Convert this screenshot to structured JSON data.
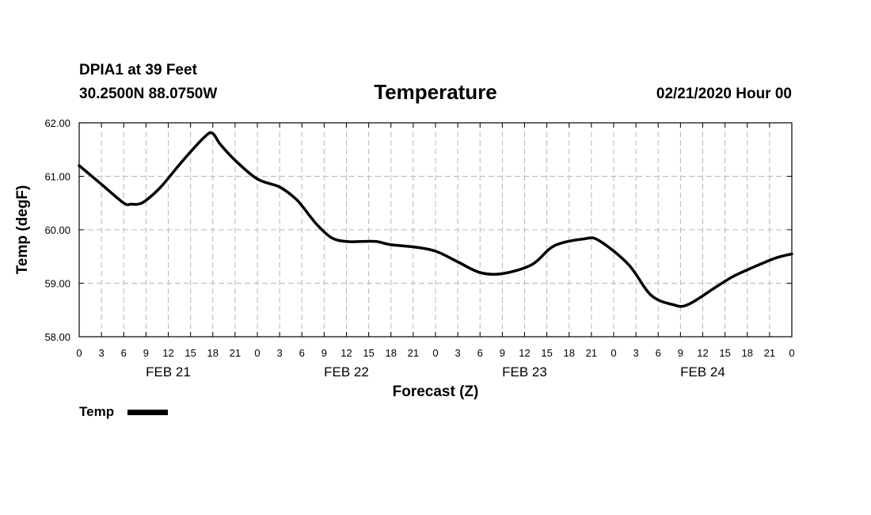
{
  "header": {
    "station": "DPIA1 at 39 Feet",
    "coords": "30.2500N 88.0750W",
    "title": "Temperature",
    "run": "02/21/2020 Hour 00"
  },
  "chart_data": {
    "type": "line",
    "title": "Temperature",
    "xlabel": "Forecast (Z)",
    "ylabel": "Temp (degF)",
    "ylim": [
      58,
      62
    ],
    "xlim": [
      0,
      96
    ],
    "grid": true,
    "y_ticks": [
      "58.00",
      "59.00",
      "60.00",
      "61.00",
      "62.00"
    ],
    "x_tick_labels": [
      "0",
      "3",
      "6",
      "9",
      "12",
      "15",
      "18",
      "21",
      "0",
      "3",
      "6",
      "9",
      "12",
      "15",
      "18",
      "21",
      "0",
      "3",
      "6",
      "9",
      "12",
      "15",
      "18",
      "21",
      "0",
      "3",
      "6",
      "9",
      "12",
      "15",
      "18",
      "21",
      "0"
    ],
    "day_labels": [
      {
        "label": "FEB 21",
        "hour": 12
      },
      {
        "label": "FEB 22",
        "hour": 36
      },
      {
        "label": "FEB 23",
        "hour": 60
      },
      {
        "label": "FEB 24",
        "hour": 84
      }
    ],
    "legend": {
      "label": "Temp",
      "position": "bottom-left"
    },
    "series": [
      {
        "name": "Temp",
        "color": "#000000",
        "x": [
          0,
          3,
          6,
          7,
          8,
          9,
          11,
          14,
          17,
          18,
          19,
          21,
          24,
          27,
          29,
          30,
          32,
          34,
          36,
          38,
          40,
          42,
          45,
          48,
          51,
          54,
          57,
          61,
          64,
          68,
          70,
          74,
          77,
          80,
          82,
          86,
          88,
          90,
          92,
          94,
          96
        ],
        "values": [
          61.2,
          60.85,
          60.5,
          60.48,
          60.48,
          60.55,
          60.8,
          61.3,
          61.75,
          61.8,
          61.6,
          61.3,
          60.95,
          60.8,
          60.6,
          60.45,
          60.1,
          59.85,
          59.78,
          59.78,
          59.78,
          59.72,
          59.68,
          59.6,
          59.4,
          59.2,
          59.18,
          59.35,
          59.7,
          59.83,
          59.8,
          59.35,
          58.78,
          58.6,
          58.6,
          58.95,
          59.12,
          59.25,
          59.37,
          59.48,
          59.55
        ]
      }
    ]
  }
}
